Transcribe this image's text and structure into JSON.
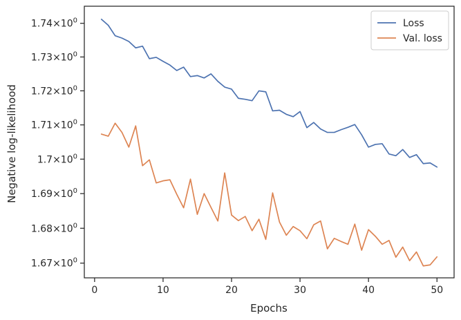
{
  "chart_data": {
    "type": "line",
    "title": "",
    "xlabel": "Epochs",
    "ylabel": "Negative log-likelihood",
    "xlim": [
      -1.5,
      52.5
    ],
    "ylim": [
      1.6658,
      1.7451
    ],
    "y_scale": "log",
    "grid": false,
    "legend_position": "top-right",
    "xticks": [
      {
        "value": 0,
        "label": "0"
      },
      {
        "value": 10,
        "label": "10"
      },
      {
        "value": 20,
        "label": "20"
      },
      {
        "value": 30,
        "label": "30"
      },
      {
        "value": 40,
        "label": "40"
      },
      {
        "value": 50,
        "label": "50"
      }
    ],
    "yticks": [
      {
        "value": 1.67,
        "base": "1.67",
        "exp": "0"
      },
      {
        "value": 1.68,
        "base": "1.68",
        "exp": "0"
      },
      {
        "value": 1.69,
        "base": "1.69",
        "exp": "0"
      },
      {
        "value": 1.7,
        "base": "1.7",
        "exp": "0"
      },
      {
        "value": 1.71,
        "base": "1.71",
        "exp": "0"
      },
      {
        "value": 1.72,
        "base": "1.72",
        "exp": "0"
      },
      {
        "value": 1.73,
        "base": "1.73",
        "exp": "0"
      },
      {
        "value": 1.74,
        "base": "1.74",
        "exp": "0"
      }
    ],
    "x": [
      1,
      2,
      3,
      4,
      5,
      6,
      7,
      8,
      9,
      10,
      11,
      12,
      13,
      14,
      15,
      16,
      17,
      18,
      19,
      20,
      21,
      22,
      23,
      24,
      25,
      26,
      27,
      28,
      29,
      30,
      31,
      32,
      33,
      34,
      35,
      36,
      37,
      38,
      39,
      40,
      41,
      42,
      43,
      44,
      45,
      46,
      47,
      48,
      49,
      50
    ],
    "series": [
      {
        "name": "Loss",
        "color": "#4c72b0",
        "values": [
          1.7412,
          1.7394,
          1.7363,
          1.7356,
          1.7346,
          1.7327,
          1.7332,
          1.7295,
          1.7299,
          1.7287,
          1.7276,
          1.726,
          1.727,
          1.7242,
          1.7245,
          1.7238,
          1.725,
          1.7228,
          1.7211,
          1.7205,
          1.7178,
          1.7175,
          1.7171,
          1.72,
          1.7197,
          1.7141,
          1.7143,
          1.7131,
          1.7124,
          1.7139,
          1.7092,
          1.7107,
          1.7088,
          1.7078,
          1.7078,
          1.7086,
          1.7093,
          1.7101,
          1.7071,
          1.7035,
          1.7043,
          1.7045,
          1.7015,
          1.701,
          1.7028,
          1.7005,
          1.7013,
          1.6987,
          1.6989,
          1.6977
        ]
      },
      {
        "name": "Val. loss",
        "color": "#dd8452",
        "values": [
          1.7073,
          1.7067,
          1.7105,
          1.7078,
          1.7035,
          1.7097,
          1.6981,
          1.6998,
          1.6931,
          1.6937,
          1.694,
          1.6898,
          1.6859,
          1.6942,
          1.684,
          1.69,
          1.686,
          1.6821,
          1.696,
          1.6838,
          1.6822,
          1.6834,
          1.6793,
          1.6826,
          1.6768,
          1.6902,
          1.6818,
          1.678,
          1.6805,
          1.6793,
          1.677,
          1.681,
          1.6821,
          1.6741,
          1.6771,
          1.6762,
          1.6754,
          1.6812,
          1.6737,
          1.6796,
          1.6777,
          1.6754,
          1.6765,
          1.6717,
          1.6746,
          1.6707,
          1.6732,
          1.6692,
          1.6695,
          1.6718
        ]
      }
    ]
  }
}
